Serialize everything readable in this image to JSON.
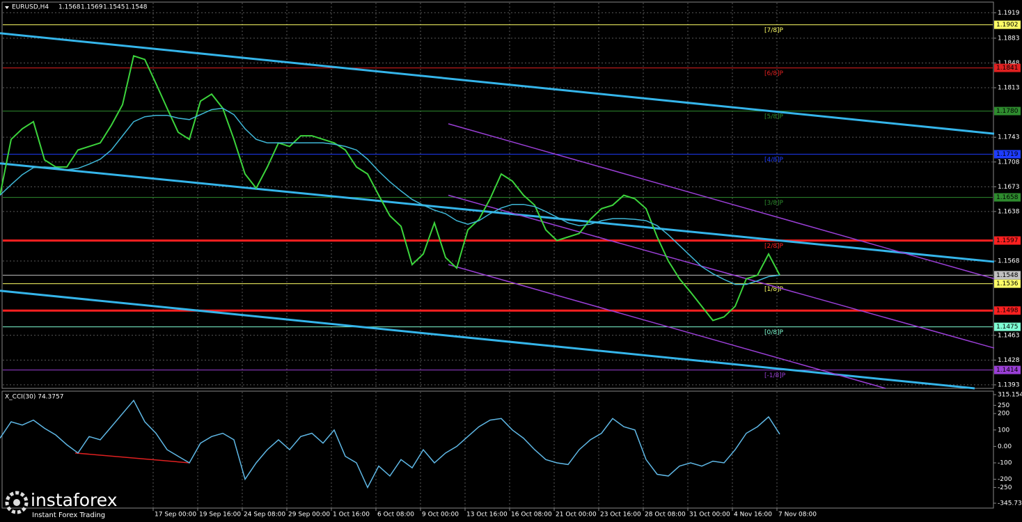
{
  "chart_data": [
    {
      "type": "line",
      "symbol": "EURUSD,H4",
      "ohlc": [
        1.1568,
        1.1569,
        1.1545,
        1.1548
      ],
      "x": [
        0,
        4,
        8,
        12,
        16,
        20,
        24,
        28,
        32,
        36,
        40,
        44,
        48,
        52,
        56,
        60,
        64,
        68,
        72,
        76,
        80,
        84,
        88,
        92,
        96,
        100,
        104,
        108,
        112,
        116,
        120,
        124,
        128,
        132,
        136,
        140,
        144,
        148,
        152,
        156,
        160,
        164,
        168,
        172,
        176,
        180,
        184,
        188,
        192,
        196,
        200,
        204,
        208,
        212,
        216,
        220,
        224,
        228,
        232,
        236,
        240,
        244,
        248,
        252,
        256,
        260,
        264,
        268,
        272,
        276,
        280
      ],
      "xlim": [
        0,
        357
      ],
      "ylim": [
        1.1388,
        1.1937
      ],
      "grid": true,
      "xticks": [
        {
          "value": 55,
          "label": "17 Sep 00:00"
        },
        {
          "value": 71,
          "label": "19 Sep 16:00"
        },
        {
          "value": 87,
          "label": "24 Sep 08:00"
        },
        {
          "value": 103,
          "label": "29 Sep 00:00"
        },
        {
          "value": 119,
          "label": "1 Oct 16:00"
        },
        {
          "value": 135,
          "label": "6 Oct 08:00"
        },
        {
          "value": 151,
          "label": "9 Oct 00:00"
        },
        {
          "value": 167,
          "label": "13 Oct 16:00"
        },
        {
          "value": 183,
          "label": "16 Oct 08:00"
        },
        {
          "value": 199,
          "label": "21 Oct 00:00"
        },
        {
          "value": 215,
          "label": "23 Oct 16:00"
        },
        {
          "value": 231,
          "label": "28 Oct 08:00"
        },
        {
          "value": 247,
          "label": "31 Oct 00:00"
        },
        {
          "value": 263,
          "label": "4 Nov 16:00"
        },
        {
          "value": 279,
          "label": "7 Nov 08:00"
        }
      ],
      "yticks": [
        1.1919,
        1.1883,
        1.1848,
        1.1813,
        1.1743,
        1.1708,
        1.1673,
        1.1638,
        1.1568,
        1.1463,
        1.1428,
        1.1393
      ],
      "series": [
        {
          "color": "#3cd43c",
          "values": [
            1.1661,
            1.174,
            1.1755,
            1.1765,
            1.1711,
            1.1701,
            1.1701,
            1.1725,
            1.173,
            1.1735,
            1.176,
            1.1789,
            1.1858,
            1.1853,
            1.1819,
            1.1784,
            1.175,
            1.174,
            1.1794,
            1.1804,
            1.1784,
            1.174,
            1.1691,
            1.1671,
            1.1701,
            1.1735,
            1.173,
            1.1745,
            1.1745,
            1.174,
            1.1735,
            1.1725,
            1.1701,
            1.1691,
            1.1661,
            1.1632,
            1.1617,
            1.1563,
            1.1578,
            1.1622,
            1.1573,
            1.1558,
            1.1612,
            1.1627,
            1.1656,
            1.1691,
            1.1681,
            1.1661,
            1.1647,
            1.1612,
            1.1597,
            1.1602,
            1.1607,
            1.1627,
            1.1642,
            1.1647,
            1.1661,
            1.1656,
            1.1642,
            1.1602,
            1.1568,
            1.1543,
            1.1524,
            1.1504,
            1.1484,
            1.1489,
            1.1504,
            1.1543,
            1.1548,
            1.1578,
            1.1548
          ]
        },
        {
          "color": "#3fb8d8",
          "values": [
            1.1661,
            1.1676,
            1.169,
            1.17,
            1.1701,
            1.17,
            1.1697,
            1.1699,
            1.1705,
            1.1712,
            1.1725,
            1.1745,
            1.1765,
            1.1772,
            1.1774,
            1.1774,
            1.177,
            1.1768,
            1.1775,
            1.1782,
            1.1784,
            1.1775,
            1.1755,
            1.174,
            1.1735,
            1.1735,
            1.1735,
            1.1735,
            1.1735,
            1.1735,
            1.1733,
            1.173,
            1.1725,
            1.1712,
            1.1695,
            1.168,
            1.1667,
            1.1655,
            1.1647,
            1.164,
            1.1635,
            1.1625,
            1.162,
            1.1625,
            1.1635,
            1.1643,
            1.1648,
            1.1648,
            1.1645,
            1.1638,
            1.163,
            1.1622,
            1.1618,
            1.162,
            1.1625,
            1.1628,
            1.1628,
            1.1627,
            1.1625,
            1.1618,
            1.1605,
            1.159,
            1.1575,
            1.156,
            1.155,
            1.1542,
            1.1535,
            1.1535,
            1.154,
            1.1546,
            1.1548
          ]
        }
      ],
      "trend_lines": [
        {
          "color": "#35b5ea",
          "width": 3,
          "x": [
            0,
            357
          ],
          "values": [
            1.189,
            1.1748
          ]
        },
        {
          "color": "#35b5ea",
          "width": 3,
          "x": [
            0,
            357
          ],
          "values": [
            1.1706,
            1.1567
          ]
        },
        {
          "color": "#35b5ea",
          "width": 3,
          "x": [
            0,
            350
          ],
          "values": [
            1.1526,
            1.1388
          ]
        },
        {
          "color": "#9a3fd6",
          "width": 1.5,
          "x": [
            161,
            357
          ],
          "values": [
            1.1762,
            1.1543
          ]
        },
        {
          "color": "#9a3fd6",
          "width": 1.5,
          "x": [
            161,
            357
          ],
          "values": [
            1.1661,
            1.1445
          ]
        },
        {
          "color": "#9a3fd6",
          "width": 1.5,
          "x": [
            161,
            318
          ],
          "values": [
            1.1563,
            1.1388
          ]
        }
      ],
      "levels": [
        {
          "value": 1.1902,
          "label": "1.1902",
          "tag": "[7/8]P",
          "color": "#ffff66",
          "width": 1
        },
        {
          "value": 1.1841,
          "label": "1.1841",
          "tag": "[6/8]P",
          "color": "#e02020",
          "width": 1
        },
        {
          "value": 1.178,
          "label": "1.1780",
          "tag": "[5/8]P",
          "color": "#2e8b2e",
          "width": 1
        },
        {
          "value": 1.1719,
          "label": "1.1719",
          "tag": "[4/8]P",
          "color": "#1e3cff",
          "width": 1
        },
        {
          "value": 1.1658,
          "label": "1.1658",
          "tag": "[3/8]P",
          "color": "#2e8b2e",
          "width": 1
        },
        {
          "value": 1.1597,
          "label": "1.1597",
          "tag": "[2/8]P",
          "color": "#ff2020",
          "width": 3
        },
        {
          "value": 1.1548,
          "label": "1.1548",
          "color": "#c0c0c0",
          "width": 1
        },
        {
          "value": 1.1536,
          "label": "1.1536",
          "tag": "[1/8]P",
          "color": "#ffff66",
          "width": 1
        },
        {
          "value": 1.1498,
          "label": "1.1498",
          "color": "#ff2020",
          "width": 3
        },
        {
          "value": 1.1475,
          "label": "1.1475",
          "tag": "[0/8]P",
          "color": "#7fffd4",
          "width": 1
        },
        {
          "value": 1.1414,
          "label": "1.1414",
          "tag": "[-1/8]P",
          "color": "#9a3fd6",
          "width": 1
        }
      ]
    },
    {
      "type": "line",
      "title": "X_CCI(30) 74.3757",
      "ylim": [
        -345.735,
        315.1542
      ],
      "yticks": [
        315.1542,
        250,
        200,
        100,
        {
          "value": 0,
          "label": "0.00"
        },
        -100,
        -200,
        -250,
        -345.735
      ],
      "series": [
        {
          "color": "#5fb8e6",
          "values": [
            50,
            150,
            130,
            160,
            110,
            70,
            10,
            -40,
            60,
            40,
            120,
            200,
            280,
            150,
            80,
            -20,
            -60,
            -100,
            20,
            60,
            80,
            40,
            -200,
            -100,
            -20,
            40,
            -20,
            60,
            80,
            20,
            100,
            -60,
            -100,
            -250,
            -120,
            -180,
            -80,
            -130,
            -20,
            -100,
            -40,
            0,
            60,
            120,
            160,
            170,
            100,
            50,
            -20,
            -80,
            -100,
            -110,
            -20,
            40,
            80,
            170,
            120,
            100,
            -80,
            -170,
            -180,
            -120,
            -100,
            -120,
            -90,
            -100,
            -20,
            80,
            120,
            180,
            74.3757
          ]
        }
      ],
      "trend_lines": [
        {
          "color": "#e02020",
          "width": 1.5,
          "x": [
            27,
            68
          ],
          "values": [
            -40,
            -100
          ]
        }
      ]
    }
  ],
  "logo": {
    "name": "instaforex",
    "slogan": "Instant Forex Trading"
  }
}
